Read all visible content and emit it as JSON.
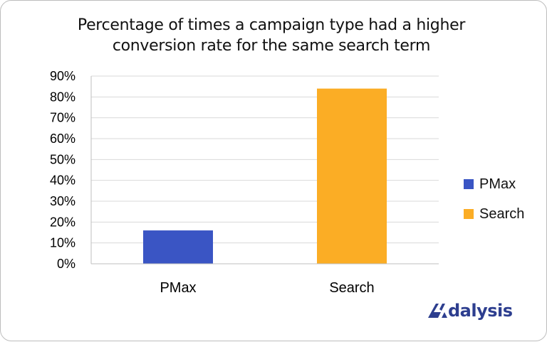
{
  "chart_data": {
    "type": "bar",
    "title_line1": "Percentage of times a campaign type had a higher",
    "title_line2": "conversion rate for the same search term",
    "categories": [
      "PMax",
      "Search"
    ],
    "values": [
      16,
      84
    ],
    "colors": [
      "#3a55c4",
      "#fbad25"
    ],
    "ylim": [
      0,
      90
    ],
    "y_ticks": [
      "0%",
      "10%",
      "20%",
      "30%",
      "40%",
      "50%",
      "60%",
      "70%",
      "80%",
      "90%"
    ],
    "y_tick_values": [
      0,
      10,
      20,
      30,
      40,
      50,
      60,
      70,
      80,
      90
    ],
    "xlabel": "",
    "ylabel": "",
    "grid": true,
    "legend_position": "right",
    "legend": [
      {
        "name": "PMax",
        "color": "#3a55c4"
      },
      {
        "name": "Search",
        "color": "#fbad25"
      }
    ]
  },
  "branding": {
    "logo_text": "dalysis",
    "logo_full": "Adalysis",
    "logo_color": "#2d3e8f"
  }
}
